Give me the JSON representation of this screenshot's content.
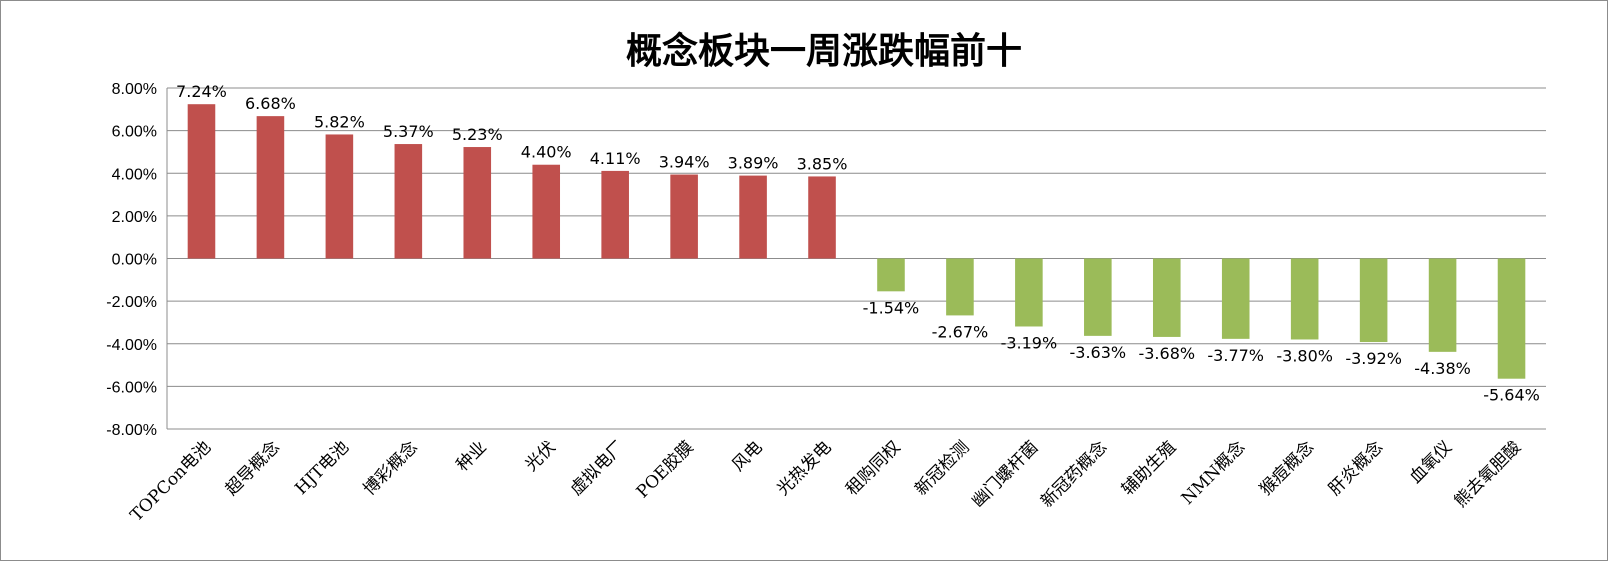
{
  "chart_data": {
    "type": "bar",
    "title": "概念板块一周涨跌幅前十",
    "xlabel": "",
    "ylabel": "",
    "ylim": [
      -8,
      8
    ],
    "ytick_step": 2,
    "ytick_labels": [
      "8.00%",
      "6.00%",
      "4.00%",
      "2.00%",
      "0.00%",
      "-2.00%",
      "-4.00%",
      "-6.00%",
      "-8.00%"
    ],
    "ytick_values": [
      8,
      6,
      4,
      2,
      0,
      -2,
      -4,
      -6,
      -8
    ],
    "grid": true,
    "legend": "none",
    "categories": [
      "TOPCon电池",
      "超导概念",
      "HJT电池",
      "博彩概念",
      "种业",
      "光伏",
      "虚拟电厂",
      "POE胶膜",
      "风电",
      "光热发电",
      "租购同权",
      "新冠检测",
      "幽门螺杆菌",
      "新冠药概念",
      "辅助生殖",
      "NMN概念",
      "猴痘概念",
      "肝炎概念",
      "血氧仪",
      "熊去氧胆酸"
    ],
    "values": [
      7.24,
      6.68,
      5.82,
      5.37,
      5.23,
      4.4,
      4.11,
      3.94,
      3.89,
      3.85,
      -1.54,
      -2.67,
      -3.19,
      -3.63,
      -3.68,
      -3.77,
      -3.8,
      -3.92,
      -4.38,
      -5.64
    ],
    "data_labels": [
      "7.24%",
      "6.68%",
      "5.82%",
      "5.37%",
      "5.23%",
      "4.40%",
      "4.11%",
      "3.94%",
      "3.89%",
      "3.85%",
      "-1.54%",
      "-2.67%",
      "-3.19%",
      "-3.63%",
      "-3.68%",
      "-3.77%",
      "-3.80%",
      "-3.92%",
      "-4.38%",
      "-5.64%"
    ],
    "colors": {
      "positive": "#c0504d",
      "negative": "#9bbb59",
      "grid": "#8c8c8c"
    }
  }
}
